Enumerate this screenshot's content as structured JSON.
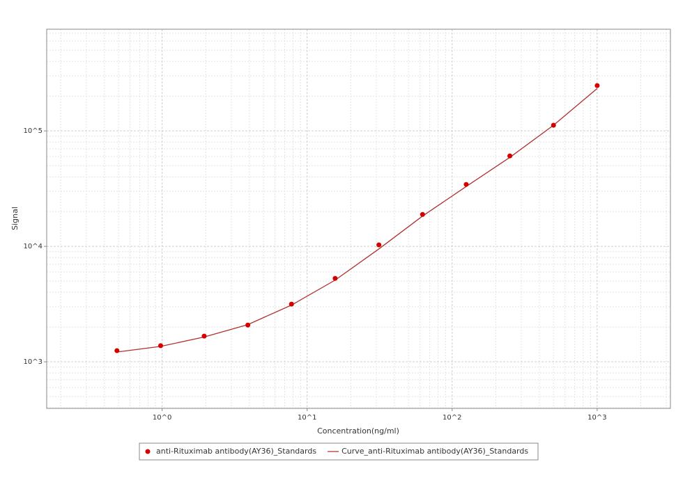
{
  "chart_data": {
    "type": "scatter",
    "x_label": "Concentration(ng/ml)",
    "y_label": "Signal",
    "x_log": true,
    "y_log": true,
    "grid": true,
    "legend": "bottom",
    "xlim": [
      0.16,
      3200
    ],
    "ylim": [
      395,
      760000
    ],
    "xticks": [
      {
        "value": 1,
        "label": "10^0"
      },
      {
        "value": 10,
        "label": "10^1"
      },
      {
        "value": 100,
        "label": "10^2"
      },
      {
        "value": 1000,
        "label": "10^3"
      }
    ],
    "yticks": [
      {
        "value": 1000,
        "label": "10^3"
      },
      {
        "value": 10000,
        "label": "10^4"
      },
      {
        "value": 100000,
        "label": "10^5"
      }
    ],
    "x": [
      0.488,
      0.977,
      1.95,
      3.9,
      7.8,
      15.6,
      31.25,
      62.5,
      125,
      250,
      500,
      1000
    ],
    "series": [
      {
        "name": "anti-Rituximab antibody(AY36)_Standards",
        "color": "#d40000",
        "kind": "points",
        "values": [
          1250,
          1380,
          1670,
          2080,
          3160,
          5280,
          10300,
          18900,
          34400,
          60700,
          112000,
          247000
        ]
      },
      {
        "name": "Curve_anti-Rituximab antibody(AY36)_Standards",
        "color": "#b03030",
        "kind": "line",
        "values": [
          1215,
          1360,
          1640,
          2100,
          3100,
          5100,
          9500,
          18300,
          33000,
          59000,
          112000,
          233000
        ]
      }
    ]
  }
}
